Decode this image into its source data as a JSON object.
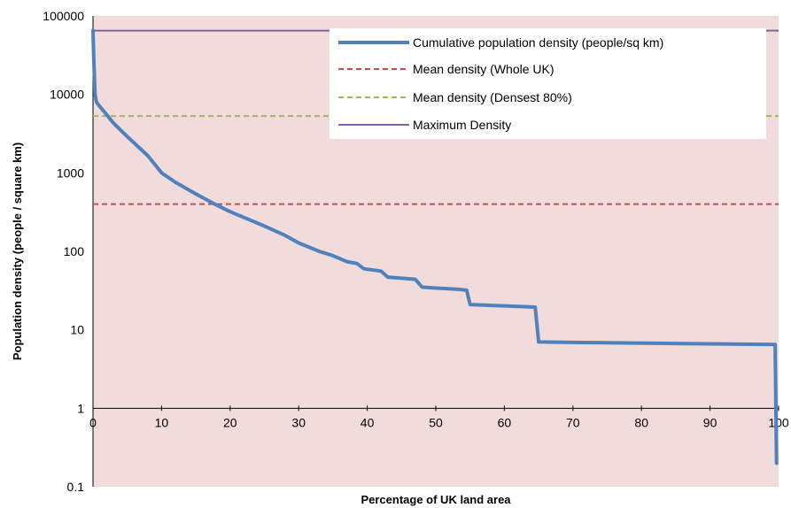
{
  "chart_data": {
    "type": "line",
    "xlabel": "Percentage of UK land area",
    "ylabel": "Population density (people / square km)",
    "x_scale": "linear",
    "y_scale": "log",
    "xlim": [
      0,
      100
    ],
    "ylim": [
      0.1,
      100000
    ],
    "x_ticks": [
      "0",
      "10",
      "20",
      "30",
      "40",
      "50",
      "60",
      "70",
      "80",
      "90",
      "100"
    ],
    "y_ticks": [
      "0.1",
      "1",
      "10",
      "100",
      "1000",
      "10000",
      "100000"
    ],
    "grid": false,
    "legend_position": "top-right",
    "series": [
      {
        "name": "Cumulative population density (people/sq km)",
        "color": "#4f81bd",
        "style": "solid-thick",
        "points": [
          [
            0,
            65000
          ],
          [
            0.1,
            30000
          ],
          [
            0.3,
            10000
          ],
          [
            0.5,
            8000
          ],
          [
            1,
            7000
          ],
          [
            2,
            5500
          ],
          [
            3,
            4300
          ],
          [
            5,
            2900
          ],
          [
            8,
            1650
          ],
          [
            10,
            1000
          ],
          [
            12,
            760
          ],
          [
            15,
            540
          ],
          [
            18,
            390
          ],
          [
            20,
            320
          ],
          [
            25,
            210
          ],
          [
            28,
            160
          ],
          [
            30,
            128
          ],
          [
            33,
            100
          ],
          [
            35,
            88
          ],
          [
            37,
            74
          ],
          [
            38.5,
            70
          ],
          [
            39.5,
            60
          ],
          [
            42,
            56
          ],
          [
            43,
            47
          ],
          [
            47,
            44
          ],
          [
            48,
            35
          ],
          [
            50,
            34
          ],
          [
            53,
            33
          ],
          [
            54.5,
            32
          ],
          [
            55,
            21
          ],
          [
            64.5,
            19.5
          ],
          [
            65,
            7
          ],
          [
            99.5,
            6.5
          ],
          [
            99.7,
            0.2
          ]
        ]
      },
      {
        "name": "Mean density (Whole UK)",
        "color": "#c0504d",
        "style": "dashed",
        "value": 400
      },
      {
        "name": "Mean density (Densest 80%)",
        "color": "#9bbb59",
        "style": "dashed",
        "value": 5300
      },
      {
        "name": "Maximum Density",
        "color": "#8064a2",
        "style": "solid",
        "value": 65000
      }
    ]
  }
}
